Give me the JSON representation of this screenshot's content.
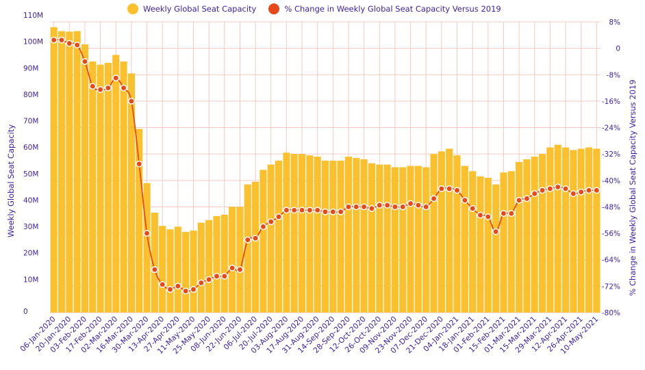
{
  "chart_data": {
    "type": "bar",
    "title": "",
    "legend": {
      "placement": "top-center",
      "entries": [
        {
          "name": "Weekly Global Seat Capacity",
          "color": "#fbc02d"
        },
        {
          "name": "% Change in Weekly Global Seat Capacity Versus 2019",
          "color": "#e64a19"
        }
      ]
    },
    "ylabel_left": "Weekly Global Seat Capacity",
    "ylabel_right": "% Change in Weekly Global Seat Capacity Versus 2019",
    "ylim_left": [
      0,
      110
    ],
    "ylim_right": [
      -80,
      8
    ],
    "yticks_left": [
      "0",
      "10M",
      "20M",
      "30M",
      "40M",
      "50M",
      "60M",
      "70M",
      "80M",
      "90M",
      "100M",
      "110M"
    ],
    "yticks_right": [
      "-80%",
      "-72%",
      "-64%",
      "-56%",
      "-48%",
      "-40%",
      "-32%",
      "-24%",
      "-16%",
      "-8%",
      "0",
      "8%"
    ],
    "x_tick_labels": [
      "06-Jan-2020",
      "20-Jan-2020",
      "03-Feb-2020",
      "17-Feb-2020",
      "02-Mar-2020",
      "16-Mar-2020",
      "30-Mar-2020",
      "13-Apr-2020",
      "27-Apr-2020",
      "11-May-2020",
      "25-May-2020",
      "08-Jun-2020",
      "22-Jun-2020",
      "06-Jul-2020",
      "20-Jul-2020",
      "03-Aug-2020",
      "17-Aug-2020",
      "31-Aug-2020",
      "14-Sep-2020",
      "28-Sep-2020",
      "12-Oct-2020",
      "26-Oct-2020",
      "09-Nov-2020",
      "23-Nov-2020",
      "07-Dec-2020",
      "21-Dec-2020",
      "04-Jan-2021",
      "18-Jan-2021",
      "01-Feb-2021",
      "15-Feb-2021",
      "01-Mar-2021",
      "15-Mar-2021",
      "29-Mar-2021",
      "12-Apr-2021",
      "26-Apr-2021",
      "10-May-2021"
    ],
    "grid": true,
    "series": [
      {
        "name": "Weekly Global Seat Capacity",
        "type": "bar",
        "axis": "left",
        "unit": "M",
        "values": [
          108,
          106.5,
          106.3,
          106.5,
          101.5,
          95,
          93.8,
          94.5,
          97.5,
          95,
          90.5,
          69.5,
          49,
          37.8,
          32.8,
          31.5,
          32.5,
          30.5,
          31,
          34,
          35,
          36.5,
          37,
          40,
          40,
          48.5,
          49.5,
          54,
          56,
          57.5,
          60.5,
          60,
          60,
          59.5,
          59,
          57.5,
          57.5,
          57.5,
          59,
          58.5,
          58,
          56.5,
          56,
          56,
          55,
          55,
          55.5,
          55.5,
          55,
          60,
          61,
          62,
          59.5,
          55.5,
          53.5,
          51.5,
          51,
          48.5,
          53,
          53.5,
          57,
          58,
          59,
          60,
          62.5,
          63.5,
          62.5,
          61.5,
          62,
          62.5,
          62
        ]
      },
      {
        "name": "% Change in Weekly Global Seat Capacity Versus 2019",
        "type": "line",
        "axis": "right",
        "unit": "%",
        "values": [
          2.5,
          2.5,
          1.5,
          1,
          -4,
          -11.5,
          -12.5,
          -12,
          -9,
          -12,
          -16,
          -35,
          -56,
          -67,
          -71.5,
          -73,
          -72,
          -73.5,
          -73,
          -71,
          -70,
          -69,
          -69,
          -66.5,
          -67,
          -58,
          -57.5,
          -54,
          -52.5,
          -51,
          -49,
          -49,
          -49,
          -49,
          -49,
          -49.5,
          -49.5,
          -49.5,
          -48,
          -48,
          -48,
          -48.5,
          -47.5,
          -47.5,
          -48,
          -48,
          -47,
          -47.5,
          -48,
          -45.5,
          -42.5,
          -42.5,
          -43,
          -46,
          -48.5,
          -50.5,
          -51,
          -55.5,
          -50,
          -50,
          -46,
          -45.5,
          -44,
          -43,
          -42.5,
          -42,
          -42.5,
          -44,
          -43.5,
          -43,
          -43
        ]
      }
    ]
  }
}
